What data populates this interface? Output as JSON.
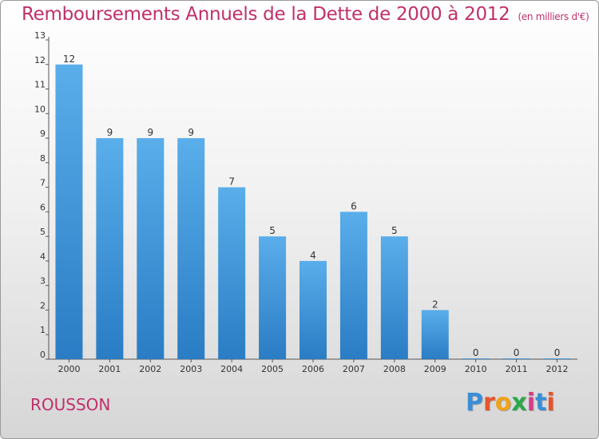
{
  "header": {
    "title": "Remboursements Annuels de la Dette de 2000 à 2012",
    "unit": "(en milliers d'€)"
  },
  "footer": {
    "place": "ROUSSON",
    "brand": "Proxiti",
    "brand_colors": [
      "#3a8ed8",
      "#e8542a",
      "#f0a21a",
      "#2aa84a",
      "#d83a8a",
      "#3a8ed8",
      "#e8542a"
    ]
  },
  "colors": {
    "title": "#c0306a",
    "bar_top": "#5aaeea",
    "bar_bottom": "#2a7cc4"
  },
  "chart_data": {
    "type": "bar",
    "categories": [
      "2000",
      "2001",
      "2002",
      "2003",
      "2004",
      "2005",
      "2006",
      "2007",
      "2008",
      "2009",
      "2010",
      "2011",
      "2012"
    ],
    "values": [
      12,
      9,
      9,
      9,
      7,
      5,
      4,
      6,
      5,
      2,
      0,
      0,
      0
    ],
    "data_labels": [
      "12",
      "9",
      "9",
      "9",
      "7",
      "5",
      "4",
      "6",
      "5",
      "2",
      "0",
      "0",
      "0"
    ],
    "yticks": [
      "0",
      "1",
      "2",
      "3",
      "4",
      "5",
      "6",
      "7",
      "8",
      "9",
      "10",
      "11",
      "12",
      "13"
    ],
    "ylim": [
      0,
      13
    ],
    "grid": false,
    "title": "Remboursements Annuels de la Dette de 2000 à 2012",
    "xlabel": "",
    "ylabel": ""
  }
}
